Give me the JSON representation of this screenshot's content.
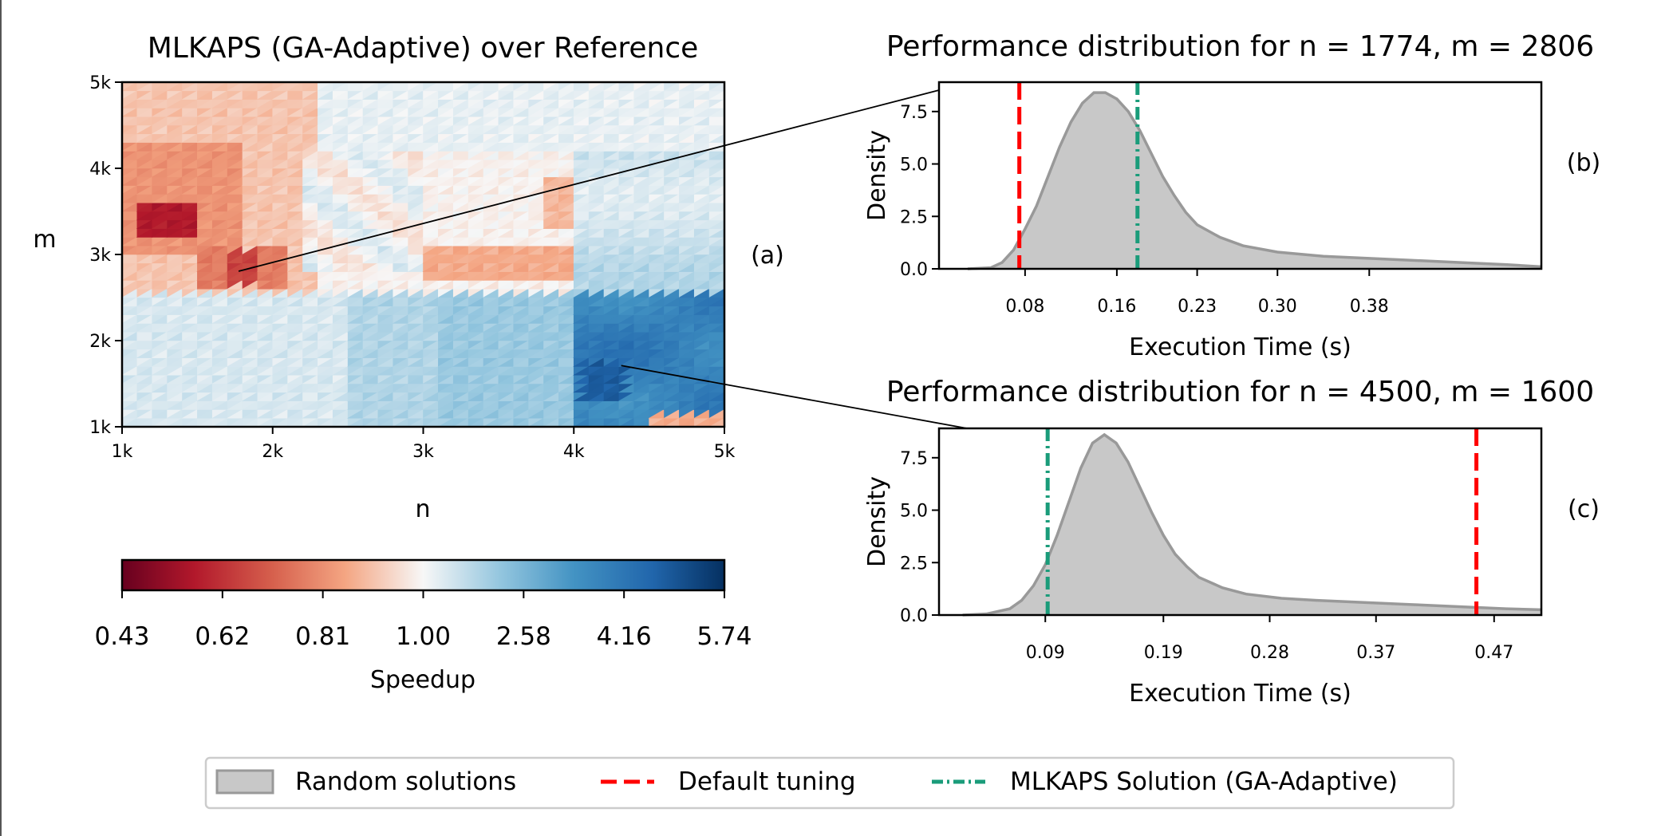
{
  "heatmap": {
    "title": "MLKAPS (GA-Adaptive) over Reference",
    "panel_label": "(a)",
    "xlabel": "n",
    "ylabel": "m",
    "x_ticks": [
      "1k",
      "2k",
      "3k",
      "4k",
      "5k"
    ],
    "y_ticks": [
      "1k",
      "2k",
      "3k",
      "4k",
      "5k"
    ],
    "x_range": [
      1000,
      5000
    ],
    "y_range": [
      1000,
      5000
    ],
    "colormap": "RdBu diverging, centered at speedup 1.00",
    "colorbar": {
      "label": "Speedup",
      "ticks": [
        "0.43",
        "0.62",
        "0.81",
        "1.00",
        "2.58",
        "4.16",
        "5.74"
      ]
    },
    "callouts": [
      {
        "n": 1774,
        "m": 2806,
        "target": "(b)"
      },
      {
        "n": 4500,
        "m": 1600,
        "target": "(c)"
      }
    ]
  },
  "chart_data": [
    {
      "type": "area",
      "title": "Performance distribution for n = 1774, m = 2806",
      "panel_label": "(b)",
      "xlabel": "Execution Time (s)",
      "ylabel": "Density",
      "x_ticks": [
        "0.08",
        "0.16",
        "0.23",
        "0.30",
        "0.38"
      ],
      "x_tick_values": [
        0.08,
        0.16,
        0.23,
        0.3,
        0.38
      ],
      "y_ticks": [
        "0.0",
        "2.5",
        "5.0",
        "7.5"
      ],
      "y_tick_values": [
        0.0,
        2.5,
        5.0,
        7.5
      ],
      "xlim": [
        0.005,
        0.53
      ],
      "ylim": [
        0,
        8.9
      ],
      "x": [
        0.03,
        0.05,
        0.06,
        0.07,
        0.08,
        0.09,
        0.1,
        0.11,
        0.12,
        0.13,
        0.14,
        0.15,
        0.16,
        0.17,
        0.18,
        0.19,
        0.2,
        0.21,
        0.22,
        0.23,
        0.25,
        0.27,
        0.3,
        0.34,
        0.38,
        0.42,
        0.46,
        0.5,
        0.53
      ],
      "series": [
        {
          "values": [
            0.0,
            0.05,
            0.3,
            0.9,
            1.9,
            3.0,
            4.4,
            5.8,
            7.0,
            7.9,
            8.4,
            8.4,
            8.1,
            7.5,
            6.6,
            5.5,
            4.4,
            3.5,
            2.7,
            2.1,
            1.5,
            1.1,
            0.8,
            0.6,
            0.5,
            0.4,
            0.3,
            0.2,
            0.1
          ]
        }
      ],
      "reference_lines": [
        {
          "label": "Default tuning",
          "x": 0.075,
          "color": "#ff0000",
          "style": "dashed"
        },
        {
          "label": "MLKAPS Solution (GA-Adaptive)",
          "x": 0.178,
          "color": "#1a9c7a",
          "style": "dashdot"
        }
      ]
    },
    {
      "type": "area",
      "title": "Performance distribution for n = 4500, m = 1600",
      "panel_label": "(c)",
      "xlabel": "Execution Time (s)",
      "ylabel": "Density",
      "x_ticks": [
        "0.09",
        "0.19",
        "0.28",
        "0.37",
        "0.47"
      ],
      "x_tick_values": [
        0.09,
        0.19,
        0.28,
        0.37,
        0.47
      ],
      "y_ticks": [
        "0.0",
        "2.5",
        "5.0",
        "7.5"
      ],
      "y_tick_values": [
        0.0,
        2.5,
        5.0,
        7.5
      ],
      "xlim": [
        0.0,
        0.51
      ],
      "ylim": [
        0,
        8.9
      ],
      "x": [
        0.02,
        0.04,
        0.06,
        0.07,
        0.08,
        0.09,
        0.1,
        0.11,
        0.12,
        0.13,
        0.14,
        0.15,
        0.16,
        0.17,
        0.18,
        0.19,
        0.2,
        0.21,
        0.22,
        0.24,
        0.26,
        0.29,
        0.32,
        0.36,
        0.4,
        0.44,
        0.48,
        0.51
      ],
      "series": [
        {
          "values": [
            0.0,
            0.05,
            0.3,
            0.7,
            1.4,
            2.4,
            3.8,
            5.4,
            7.0,
            8.2,
            8.6,
            8.2,
            7.3,
            6.1,
            4.9,
            3.8,
            2.9,
            2.3,
            1.8,
            1.3,
            1.0,
            0.8,
            0.7,
            0.6,
            0.5,
            0.4,
            0.3,
            0.25
          ]
        }
      ],
      "reference_lines": [
        {
          "label": "Default tuning",
          "x": 0.455,
          "color": "#ff0000",
          "style": "dashed"
        },
        {
          "label": "MLKAPS Solution (GA-Adaptive)",
          "x": 0.092,
          "color": "#1a9c7a",
          "style": "dashdot"
        }
      ]
    }
  ],
  "legend": {
    "placement": "bottom-center",
    "items": [
      {
        "label": "Random solutions",
        "kind": "patch",
        "color": "#c8c8c8"
      },
      {
        "label": "Default tuning",
        "kind": "dashed",
        "color": "#ff0000"
      },
      {
        "label": "MLKAPS Solution (GA-Adaptive)",
        "kind": "dashdot",
        "color": "#1a9c7a"
      }
    ]
  }
}
